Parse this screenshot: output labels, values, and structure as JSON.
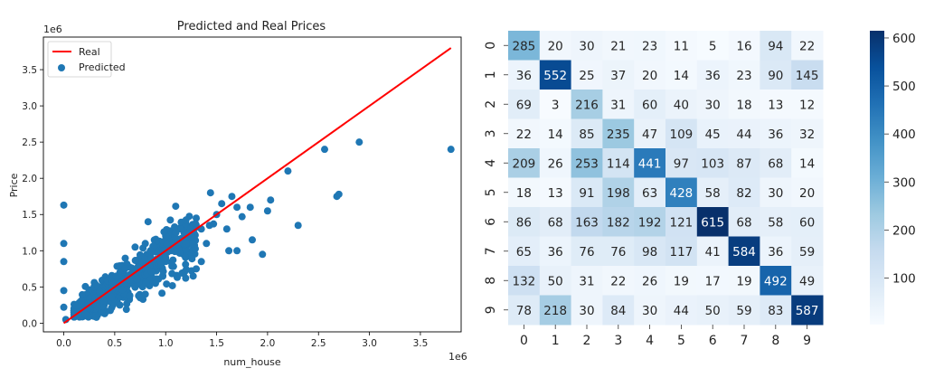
{
  "chart_data": [
    {
      "type": "scatter",
      "title": "Predicted and Real Prices",
      "xlabel": "num_house",
      "ylabel": "Price",
      "x_multiplier_label": "1e6",
      "y_multiplier_label": "1e6",
      "xlim": [
        -0.2,
        3.9
      ],
      "ylim": [
        -0.12,
        3.95
      ],
      "xticks": [
        0.0,
        0.5,
        1.0,
        1.5,
        2.0,
        2.5,
        3.0,
        3.5
      ],
      "yticks": [
        0.0,
        0.5,
        1.0,
        1.5,
        2.0,
        2.5,
        3.0,
        3.5
      ],
      "legend_position": "top-left",
      "series": [
        {
          "name": "Real",
          "kind": "line",
          "color": "#ff0000",
          "x": [
            0.0,
            3.8
          ],
          "y": [
            0.0,
            3.8
          ]
        },
        {
          "name": "Predicted",
          "kind": "scatter",
          "color": "#1f77b4",
          "points": [
            [
              0.0,
              1.63
            ],
            [
              0.0,
              1.1
            ],
            [
              0.0,
              0.85
            ],
            [
              0.0,
              0.45
            ],
            [
              0.0,
              0.22
            ],
            [
              0.02,
              0.05
            ],
            [
              3.8,
              2.4
            ],
            [
              2.9,
              2.5
            ],
            [
              2.56,
              2.4
            ],
            [
              2.7,
              1.78
            ],
            [
              2.68,
              1.75
            ],
            [
              2.3,
              1.35
            ],
            [
              2.2,
              2.1
            ],
            [
              2.0,
              1.55
            ],
            [
              2.03,
              1.7
            ],
            [
              1.83,
              1.6
            ],
            [
              1.75,
              1.47
            ],
            [
              1.7,
              1.6
            ],
            [
              1.65,
              1.75
            ],
            [
              1.55,
              1.65
            ],
            [
              1.5,
              1.5
            ],
            [
              1.44,
              1.8
            ],
            [
              1.47,
              1.37
            ],
            [
              1.43,
              1.35
            ],
            [
              1.6,
              1.3
            ],
            [
              1.7,
              1.0
            ],
            [
              1.85,
              1.15
            ],
            [
              1.95,
              0.95
            ],
            [
              1.62,
              1.0
            ],
            [
              1.3,
              1.45
            ],
            [
              1.25,
              1.2
            ],
            [
              1.35,
              1.3
            ],
            [
              1.4,
              1.1
            ],
            [
              1.35,
              0.85
            ],
            [
              1.3,
              0.75
            ],
            [
              1.27,
              0.65
            ],
            [
              1.2,
              1.1
            ],
            [
              1.15,
              1.3
            ],
            [
              1.1,
              1.25
            ],
            [
              0.8,
              1.1
            ],
            [
              0.85,
              1.0
            ],
            [
              0.7,
              1.05
            ],
            [
              0.9,
              0.55
            ],
            [
              1.0,
              0.9
            ],
            [
              1.05,
              1.0
            ],
            [
              0.95,
              0.85
            ],
            [
              0.8,
              0.4
            ],
            [
              0.55,
              0.25
            ],
            [
              0.6,
              0.75
            ],
            [
              0.65,
              0.6
            ],
            [
              0.75,
              0.35
            ],
            [
              0.7,
              0.5
            ]
          ],
          "cloud": {
            "x_range": [
              0.1,
              1.3
            ],
            "center_ratio": 0.95,
            "spread": 0.18,
            "count": 650
          }
        }
      ]
    },
    {
      "type": "heatmap",
      "title": "",
      "xlabel": "",
      "ylabel": "",
      "x_labels": [
        "0",
        "1",
        "2",
        "3",
        "4",
        "5",
        "6",
        "7",
        "8",
        "9"
      ],
      "y_labels": [
        "0",
        "1",
        "2",
        "3",
        "4",
        "5",
        "6",
        "7",
        "8",
        "9"
      ],
      "values": [
        [
          285,
          20,
          30,
          21,
          23,
          11,
          5,
          16,
          94,
          22
        ],
        [
          36,
          552,
          25,
          37,
          20,
          14,
          36,
          23,
          90,
          145
        ],
        [
          69,
          3,
          216,
          31,
          60,
          40,
          30,
          18,
          13,
          12
        ],
        [
          22,
          14,
          85,
          235,
          47,
          109,
          45,
          44,
          36,
          32
        ],
        [
          209,
          26,
          253,
          114,
          441,
          97,
          103,
          87,
          68,
          14
        ],
        [
          18,
          13,
          91,
          198,
          63,
          428,
          58,
          82,
          30,
          20
        ],
        [
          86,
          68,
          163,
          182,
          192,
          121,
          615,
          68,
          58,
          60
        ],
        [
          65,
          36,
          76,
          76,
          98,
          117,
          41,
          584,
          36,
          59
        ],
        [
          132,
          50,
          31,
          22,
          26,
          19,
          17,
          19,
          492,
          49
        ],
        [
          78,
          218,
          30,
          84,
          30,
          44,
          50,
          59,
          83,
          587
        ]
      ],
      "colormap": "Blues",
      "color_low": "#f7fbff",
      "color_high": "#08306b",
      "colorbar_range": [
        3,
        615
      ],
      "colorbar_ticks": [
        100,
        200,
        300,
        400,
        500,
        600
      ],
      "colorbar_labels": [
        "100",
        "200",
        "300",
        "400",
        "500",
        "600"
      ]
    }
  ]
}
